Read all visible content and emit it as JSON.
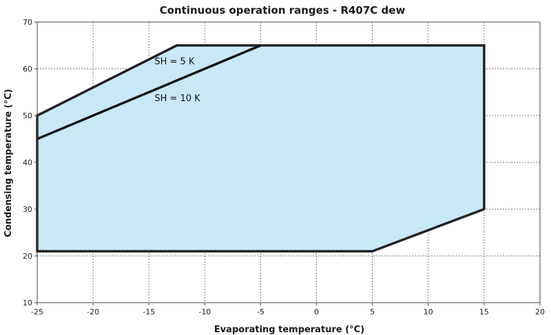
{
  "chart_data": {
    "type": "area",
    "title": "Continuous operation ranges - R407C dew",
    "xlabel": "Evaporating temperature (°C)",
    "ylabel": "Condensing temperature (°C)",
    "xlim": [
      -25,
      20
    ],
    "ylim": [
      10,
      70
    ],
    "xticks": [
      -25,
      -20,
      -15,
      -10,
      -5,
      0,
      5,
      10,
      15,
      20
    ],
    "yticks": [
      10,
      20,
      30,
      40,
      50,
      60,
      70
    ],
    "grid": true,
    "fill_color": "#c8e8f8",
    "outline_color": "#222222",
    "envelope": {
      "x": [
        -25,
        -12.5,
        15,
        15,
        5,
        -25
      ],
      "y": [
        50,
        65,
        65,
        30,
        21,
        21
      ]
    },
    "lines": [
      {
        "x": [
          -25,
          -5
        ],
        "y": [
          45,
          65
        ]
      }
    ],
    "annotations": [
      {
        "text": "SH = 5 K",
        "x": -14.5,
        "y": 61.7
      },
      {
        "text": "SH = 10 K",
        "x": -14.5,
        "y": 53.8
      }
    ]
  }
}
